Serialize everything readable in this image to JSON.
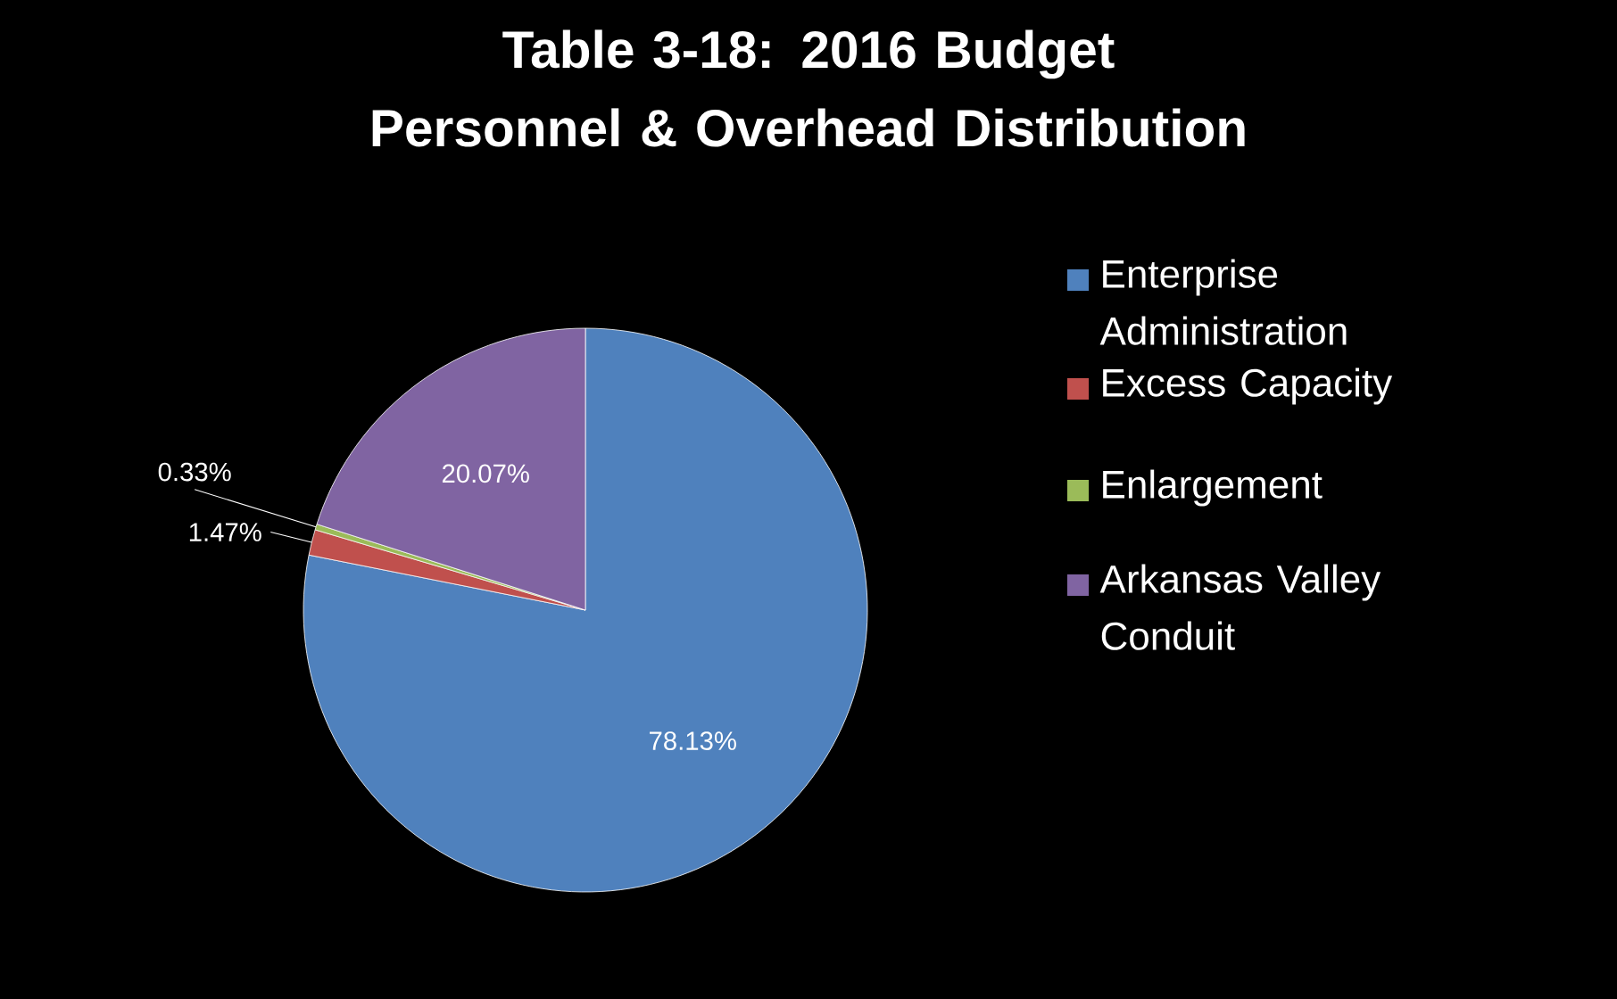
{
  "chart_data": {
    "type": "pie",
    "title": "Table 3-18: 2016 Budget Personnel & Overhead Distribution",
    "categories": [
      "Enterprise Administration",
      "Excess Capacity",
      "Enlargement",
      "Arkansas Valley Conduit"
    ],
    "values": [
      78.13,
      1.47,
      0.33,
      20.07
    ],
    "colors": [
      "#4f81bd",
      "#c0504d",
      "#9bbb59",
      "#8064a2"
    ],
    "value_labels": [
      "78.13%",
      "1.47%",
      "0.33%",
      "20.07%"
    ],
    "legend": "right"
  }
}
